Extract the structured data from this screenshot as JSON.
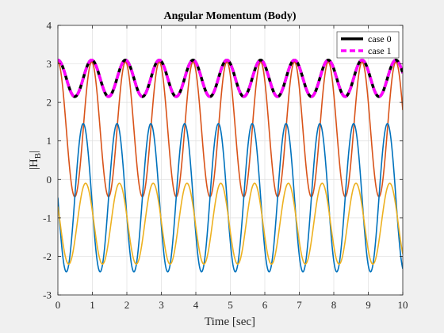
{
  "chart_data": {
    "type": "line",
    "title": "Angular Momentum (Body)",
    "xlabel": "Time [sec]",
    "ylabel": "|H_B|",
    "xlim": [
      0,
      10
    ],
    "ylim": [
      -3,
      4
    ],
    "xticks": [
      0,
      1,
      2,
      3,
      4,
      5,
      6,
      7,
      8,
      9,
      10
    ],
    "yticks": [
      -3,
      -2,
      -1,
      0,
      1,
      2,
      3,
      4
    ],
    "grid": true,
    "legend_position": "top-right",
    "period_sec": 0.98,
    "series": [
      {
        "name": "case 0",
        "color": "#000000",
        "style": "solid",
        "in_legend": true,
        "min": 2.15,
        "max": 3.1,
        "phase": 0,
        "x": [
          0,
          0.25,
          0.5,
          0.75,
          1.0,
          1.25,
          1.5,
          1.75,
          2.0
        ],
        "y": [
          3.05,
          2.6,
          2.15,
          2.62,
          3.1,
          2.6,
          2.15,
          2.62,
          3.1
        ]
      },
      {
        "name": "case 1",
        "color": "#ff00ff",
        "style": "dashed",
        "in_legend": true,
        "min": 2.15,
        "max": 3.1,
        "phase": 0,
        "x": [
          0,
          0.25,
          0.5,
          0.75,
          1.0,
          1.25,
          1.5,
          1.75,
          2.0
        ],
        "y": [
          3.05,
          2.6,
          2.15,
          2.62,
          3.1,
          2.6,
          2.15,
          2.62,
          3.1
        ]
      },
      {
        "color": "#d95319",
        "style": "solid",
        "in_legend": false,
        "min": -0.45,
        "max": 3.05,
        "phase": 0,
        "x": [
          0,
          0.25,
          0.5,
          0.75,
          1.0
        ],
        "y": [
          3.05,
          1.3,
          -0.45,
          1.3,
          3.05
        ]
      },
      {
        "color": "#0072bd",
        "style": "solid",
        "in_legend": false,
        "min": -2.4,
        "max": 1.45,
        "phase": 0.5,
        "x": [
          0,
          0.25,
          0.5,
          0.75,
          1.0
        ],
        "y": [
          -0.05,
          -2.2,
          -0.5,
          1.45,
          -0.3
        ]
      },
      {
        "color": "#edb120",
        "style": "solid",
        "in_legend": false,
        "min": -2.2,
        "max": -0.1,
        "phase": 0,
        "x": [
          0,
          0.25,
          0.5,
          0.75,
          1.0
        ],
        "y": [
          -0.3,
          -1.5,
          -2.2,
          -0.8,
          -0.1
        ]
      }
    ]
  }
}
